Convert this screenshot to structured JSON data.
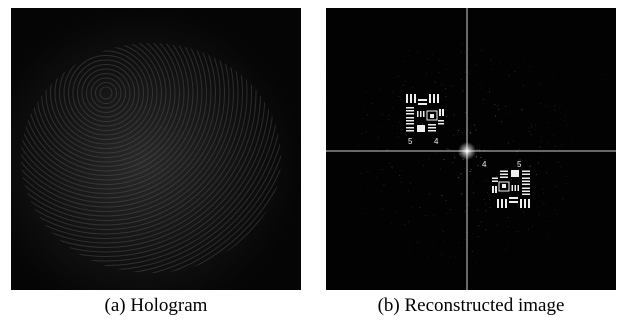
{
  "figure": {
    "panels": [
      {
        "id": "a",
        "caption": "(a) Hologram"
      },
      {
        "id": "b",
        "caption": "(b) Reconstructed image"
      }
    ],
    "target_labels": {
      "upper": {
        "left": "5",
        "right": "4"
      },
      "lower": {
        "left": "4",
        "right": "5"
      }
    },
    "colors": {
      "background": "#000000",
      "signal": "#ffffff",
      "caption_text": "#000000"
    }
  }
}
